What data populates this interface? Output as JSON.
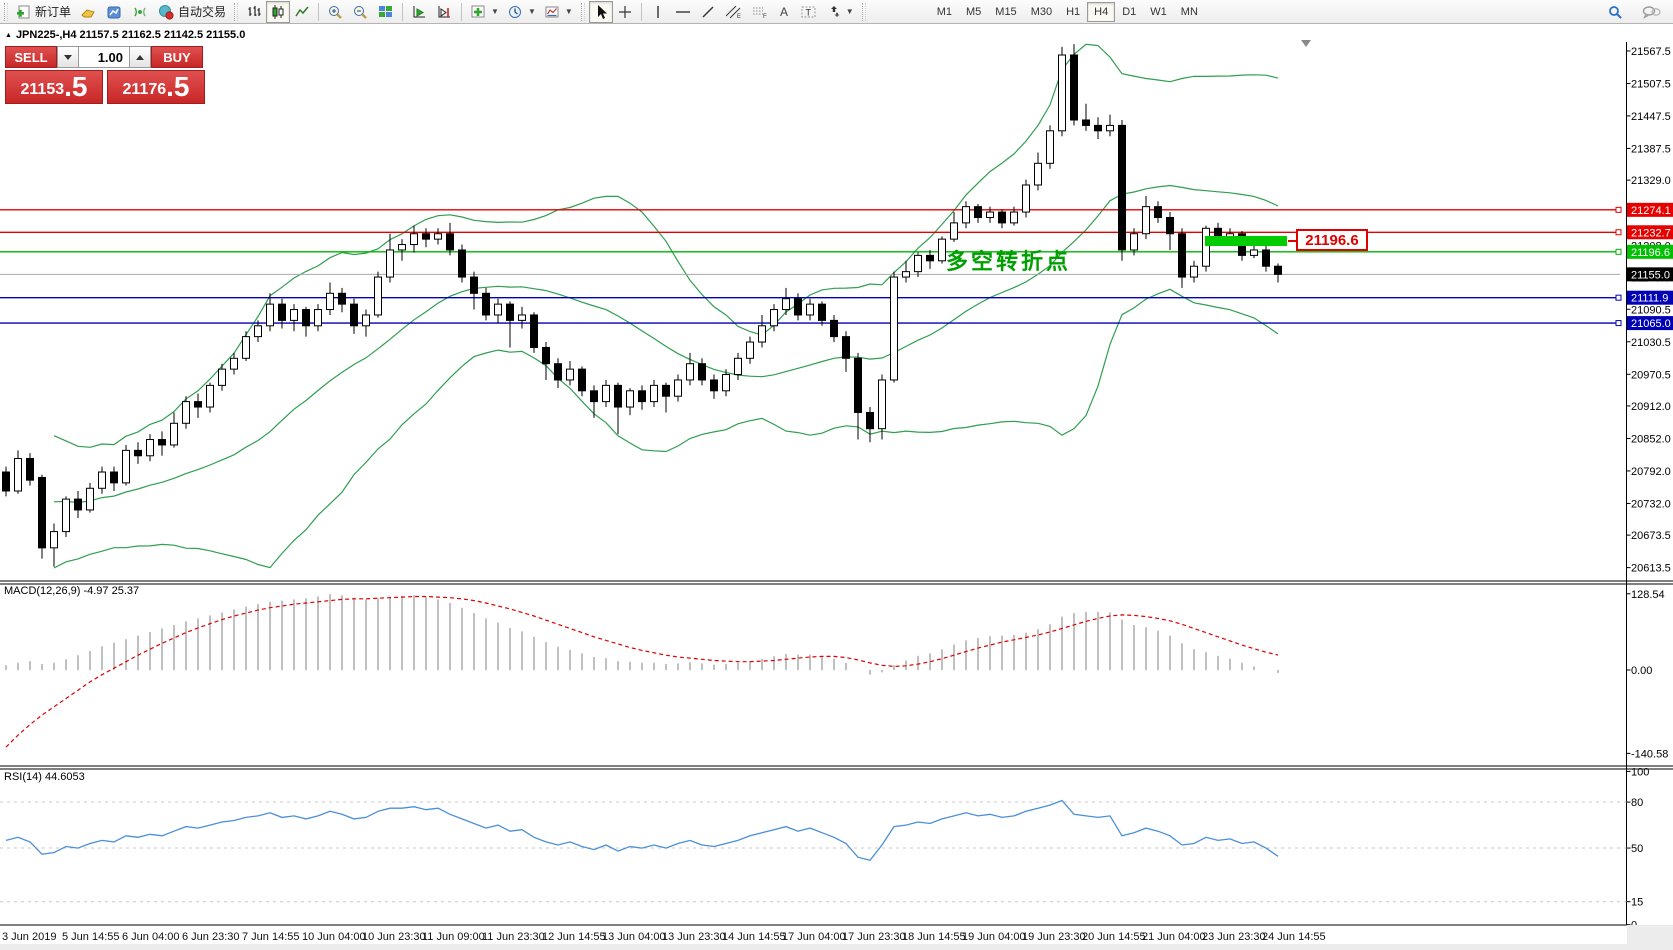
{
  "toolbar": {
    "new_order_label": "新订单",
    "autotrade_label": "自动交易",
    "timeframes": [
      "M1",
      "M5",
      "M15",
      "M30",
      "H1",
      "H4",
      "D1",
      "W1",
      "MN"
    ],
    "active_timeframe": "H4"
  },
  "chart_header": {
    "marker": "▲",
    "title": "JPN225-,H4  21157.5 21162.5 21142.5 21155.0"
  },
  "one_click": {
    "sell_label": "SELL",
    "buy_label": "BUY",
    "volume": "1.00",
    "sell_price_main": "21153",
    "sell_price_big": ".5",
    "buy_price_main": "21176",
    "buy_price_big": ".5"
  },
  "indicators": {
    "macd_label": "MACD(12,26,9) -4.97 25.37",
    "rsi_label": "RSI(14) 44.6053"
  },
  "annotation": {
    "text": "多空转折点",
    "color": "#00a000"
  },
  "price_highlight": {
    "label": "21196.6"
  },
  "chart_data": {
    "type": "candlestick",
    "symbol": "JPN225-",
    "period": "H4",
    "title": "JPN225-,H4 21157.5 21162.5 21142.5 21155.0",
    "ylim": [
      20613.5,
      21567.5
    ],
    "price_ticks": [
      21567.5,
      21507.5,
      21447.5,
      21387.5,
      21329.0,
      21269.0,
      21208.0,
      21149.0,
      21090.5,
      21030.5,
      20970.5,
      20912.0,
      20852.0,
      20792.0,
      20732.0,
      20673.5,
      20613.5
    ],
    "candles": [
      [
        20790,
        20800,
        20745,
        20755
      ],
      [
        20755,
        20830,
        20750,
        20815
      ],
      [
        20815,
        20825,
        20765,
        20775
      ],
      [
        20780,
        20785,
        20630,
        20650
      ],
      [
        20650,
        20695,
        20615,
        20680
      ],
      [
        20680,
        20745,
        20670,
        20740
      ],
      [
        20740,
        20755,
        20705,
        20720
      ],
      [
        20720,
        20770,
        20715,
        20760
      ],
      [
        20760,
        20800,
        20750,
        20790
      ],
      [
        20790,
        20800,
        20755,
        20770
      ],
      [
        20770,
        20840,
        20765,
        20830
      ],
      [
        20830,
        20845,
        20805,
        20820
      ],
      [
        20820,
        20860,
        20810,
        20850
      ],
      [
        20850,
        20865,
        20820,
        20840
      ],
      [
        20840,
        20900,
        20835,
        20880
      ],
      [
        20880,
        20930,
        20870,
        20920
      ],
      [
        20920,
        20935,
        20890,
        20910
      ],
      [
        20910,
        20955,
        20900,
        20950
      ],
      [
        20950,
        20990,
        20940,
        20980
      ],
      [
        20980,
        21010,
        20970,
        21000
      ],
      [
        21000,
        21050,
        20995,
        21040
      ],
      [
        21040,
        21070,
        21030,
        21060
      ],
      [
        21060,
        21120,
        21050,
        21100
      ],
      [
        21100,
        21110,
        21055,
        21070
      ],
      [
        21070,
        21100,
        21050,
        21090
      ],
      [
        21090,
        21095,
        21040,
        21060
      ],
      [
        21060,
        21100,
        21050,
        21090
      ],
      [
        21090,
        21140,
        21080,
        21120
      ],
      [
        21120,
        21130,
        21085,
        21100
      ],
      [
        21100,
        21110,
        21045,
        21060
      ],
      [
        21060,
        21090,
        21040,
        21080
      ],
      [
        21080,
        21160,
        21075,
        21150
      ],
      [
        21150,
        21230,
        21140,
        21200
      ],
      [
        21200,
        21220,
        21180,
        21210
      ],
      [
        21210,
        21245,
        21195,
        21230
      ],
      [
        21230,
        21240,
        21205,
        21220
      ],
      [
        21220,
        21240,
        21210,
        21230
      ],
      [
        21230,
        21250,
        21190,
        21200
      ],
      [
        21200,
        21210,
        21140,
        21150
      ],
      [
        21150,
        21160,
        21090,
        21120
      ],
      [
        21120,
        21130,
        21070,
        21080
      ],
      [
        21080,
        21110,
        21065,
        21100
      ],
      [
        21100,
        21105,
        21020,
        21070
      ],
      [
        21070,
        21095,
        21055,
        21080
      ],
      [
        21080,
        21085,
        21010,
        21020
      ],
      [
        21020,
        21030,
        20960,
        20990
      ],
      [
        20990,
        21000,
        20945,
        20960
      ],
      [
        20960,
        20995,
        20950,
        20980
      ],
      [
        20980,
        20985,
        20930,
        20940
      ],
      [
        20940,
        20950,
        20890,
        20920
      ],
      [
        20920,
        20960,
        20910,
        20950
      ],
      [
        20950,
        20955,
        20860,
        20910
      ],
      [
        20910,
        20945,
        20895,
        20940
      ],
      [
        20940,
        20950,
        20905,
        20920
      ],
      [
        20920,
        20960,
        20910,
        20950
      ],
      [
        20950,
        20955,
        20900,
        20930
      ],
      [
        20930,
        20970,
        20920,
        20960
      ],
      [
        20960,
        21010,
        20950,
        20990
      ],
      [
        20990,
        21000,
        20950,
        20960
      ],
      [
        20960,
        20970,
        20925,
        20940
      ],
      [
        20940,
        20980,
        20930,
        20970
      ],
      [
        20970,
        21010,
        20960,
        21000
      ],
      [
        21000,
        21040,
        20990,
        21030
      ],
      [
        21030,
        21080,
        21020,
        21060
      ],
      [
        21060,
        21100,
        21050,
        21090
      ],
      [
        21090,
        21130,
        21080,
        21110
      ],
      [
        21110,
        21120,
        21070,
        21080
      ],
      [
        21080,
        21110,
        21070,
        21100
      ],
      [
        21100,
        21105,
        21060,
        21070
      ],
      [
        21070,
        21080,
        21030,
        21040
      ],
      [
        21040,
        21050,
        20975,
        21000
      ],
      [
        21000,
        21010,
        20850,
        20900
      ],
      [
        20900,
        20910,
        20845,
        20870
      ],
      [
        20870,
        20970,
        20850,
        20960
      ],
      [
        20960,
        21160,
        20955,
        21150
      ],
      [
        21150,
        21180,
        21140,
        21160
      ],
      [
        21160,
        21195,
        21150,
        21190
      ],
      [
        21190,
        21200,
        21165,
        21180
      ],
      [
        21180,
        21225,
        21175,
        21220
      ],
      [
        21220,
        21270,
        21215,
        21250
      ],
      [
        21250,
        21290,
        21240,
        21280
      ],
      [
        21280,
        21285,
        21250,
        21260
      ],
      [
        21260,
        21280,
        21250,
        21270
      ],
      [
        21270,
        21275,
        21240,
        21250
      ],
      [
        21250,
        21280,
        21245,
        21270
      ],
      [
        21270,
        21330,
        21260,
        21320
      ],
      [
        21320,
        21380,
        21310,
        21360
      ],
      [
        21360,
        21430,
        21350,
        21420
      ],
      [
        21420,
        21575,
        21410,
        21560
      ],
      [
        21560,
        21580,
        21430,
        21440
      ],
      [
        21440,
        21470,
        21420,
        21430
      ],
      [
        21430,
        21445,
        21405,
        21420
      ],
      [
        21420,
        21450,
        21410,
        21430
      ],
      [
        21430,
        21440,
        21180,
        21200
      ],
      [
        21200,
        21240,
        21190,
        21230
      ],
      [
        21230,
        21300,
        21220,
        21280
      ],
      [
        21280,
        21290,
        21250,
        21260
      ],
      [
        21260,
        21270,
        21200,
        21230
      ],
      [
        21230,
        21240,
        21130,
        21150
      ],
      [
        21150,
        21180,
        21140,
        21170
      ],
      [
        21170,
        21245,
        21160,
        21240
      ],
      [
        21240,
        21250,
        21210,
        21220
      ],
      [
        21220,
        21240,
        21210,
        21230
      ],
      [
        21230,
        21235,
        21180,
        21190
      ],
      [
        21190,
        21215,
        21185,
        21200
      ],
      [
        21200,
        21210,
        21160,
        21170
      ],
      [
        21170,
        21175,
        21140,
        21155
      ]
    ],
    "bollinger": {
      "period": 20,
      "deviations": 2,
      "color": "#2f9e4f"
    },
    "hlines": [
      {
        "price": 21274.1,
        "color": "#e60000",
        "label_bg": "#e60000"
      },
      {
        "price": 21232.7,
        "color": "#e60000",
        "label_bg": "#e60000"
      },
      {
        "price": 21196.6,
        "color": "#00b400",
        "label_bg": "#00c000"
      },
      {
        "price": 21111.9,
        "color": "#0000b4",
        "label_bg": "#0000b4"
      },
      {
        "price": 21065.0,
        "color": "#0000b4",
        "label_bg": "#0000b4"
      }
    ],
    "current_price": {
      "price": 21155.0,
      "line_color": "#a8a8a8",
      "label_bg": "#000000"
    },
    "highlight_bar": {
      "price_label": "21196.6",
      "color": "#00cc00"
    },
    "macd": {
      "params": "12,26,9",
      "value_main": -4.97,
      "value_signal": 25.37,
      "axis_labels": [
        128.54,
        0.0,
        -140.58
      ],
      "histogram": [
        8,
        12,
        15,
        10,
        12,
        18,
        25,
        32,
        40,
        46,
        52,
        58,
        64,
        70,
        76,
        82,
        87,
        92,
        97,
        102,
        107,
        111,
        115,
        117,
        119,
        121,
        124,
        128,
        126,
        122,
        119,
        121,
        124,
        125,
        126,
        123,
        119,
        113,
        105,
        96,
        87,
        80,
        71,
        65,
        56,
        47,
        39,
        34,
        28,
        22,
        20,
        15,
        14,
        12,
        12,
        10,
        11,
        13,
        11,
        9,
        10,
        12,
        15,
        19,
        23,
        27,
        26,
        26,
        24,
        19,
        12,
        0,
        -8,
        -4,
        8,
        16,
        24,
        28,
        35,
        43,
        50,
        54,
        57,
        58,
        59,
        63,
        69,
        77,
        90,
        96,
        98,
        98,
        97,
        85,
        76,
        72,
        66,
        58,
        45,
        35,
        30,
        24,
        19,
        12,
        6,
        0,
        -4.97
      ],
      "signal": [
        -130,
        -110,
        -92,
        -76,
        -62,
        -48,
        -34,
        -20,
        -8,
        3,
        14,
        25,
        35,
        45,
        54,
        63,
        71,
        78,
        85,
        91,
        96,
        101,
        105,
        108,
        111,
        113,
        115,
        117,
        119,
        120,
        120,
        121,
        122,
        123,
        124,
        124,
        123,
        122,
        120,
        117,
        113,
        108,
        103,
        97,
        91,
        84,
        77,
        70,
        63,
        56,
        50,
        44,
        38,
        33,
        29,
        25,
        22,
        20,
        18,
        16,
        15,
        14,
        14,
        15,
        16,
        18,
        20,
        22,
        23,
        23,
        21,
        17,
        12,
        8,
        6,
        7,
        10,
        14,
        19,
        25,
        31,
        37,
        42,
        47,
        51,
        55,
        59,
        64,
        70,
        76,
        82,
        87,
        91,
        93,
        92,
        90,
        87,
        83,
        77,
        70,
        63,
        56,
        49,
        42,
        36,
        30,
        25.37
      ]
    },
    "rsi": {
      "period": 14,
      "value": 44.6053,
      "axis_labels": [
        100,
        80,
        50,
        15,
        0
      ],
      "levels": [
        80,
        50,
        15
      ],
      "values": [
        55,
        57,
        54,
        46,
        47,
        51,
        50,
        53,
        55,
        54,
        58,
        57,
        59,
        58,
        61,
        64,
        63,
        65,
        67,
        68,
        70,
        71,
        73,
        70,
        71,
        69,
        71,
        74,
        72,
        69,
        70,
        74,
        76,
        76,
        77,
        75,
        76,
        72,
        69,
        66,
        63,
        65,
        61,
        62,
        57,
        54,
        52,
        54,
        51,
        49,
        52,
        48,
        51,
        50,
        52,
        50,
        53,
        55,
        52,
        51,
        53,
        55,
        58,
        60,
        62,
        64,
        61,
        63,
        60,
        57,
        53,
        44,
        42,
        52,
        64,
        65,
        67,
        66,
        69,
        71,
        73,
        71,
        72,
        70,
        71,
        74,
        76,
        78,
        81,
        72,
        71,
        70,
        71,
        58,
        60,
        63,
        61,
        58,
        52,
        53,
        57,
        55,
        56,
        53,
        54,
        50,
        44.6
      ]
    },
    "time_labels": [
      "3 Jun 2019",
      "5 Jun 14:55",
      "6 Jun 04:00",
      "6 Jun 23:30",
      "7 Jun 14:55",
      "10 Jun 04:00",
      "10 Jun 23:30",
      "11 Jun 09:00",
      "11 Jun 23:30",
      "12 Jun 14:55",
      "13 Jun 04:00",
      "13 Jun 23:30",
      "14 Jun 14:55",
      "17 Jun 04:00",
      "17 Jun 23:30",
      "18 Jun 14:55",
      "19 Jun 04:00",
      "19 Jun 23:30",
      "20 Jun 14:55",
      "21 Jun 04:00",
      "23 Jun 23:30",
      "24 Jun 14:55"
    ]
  }
}
